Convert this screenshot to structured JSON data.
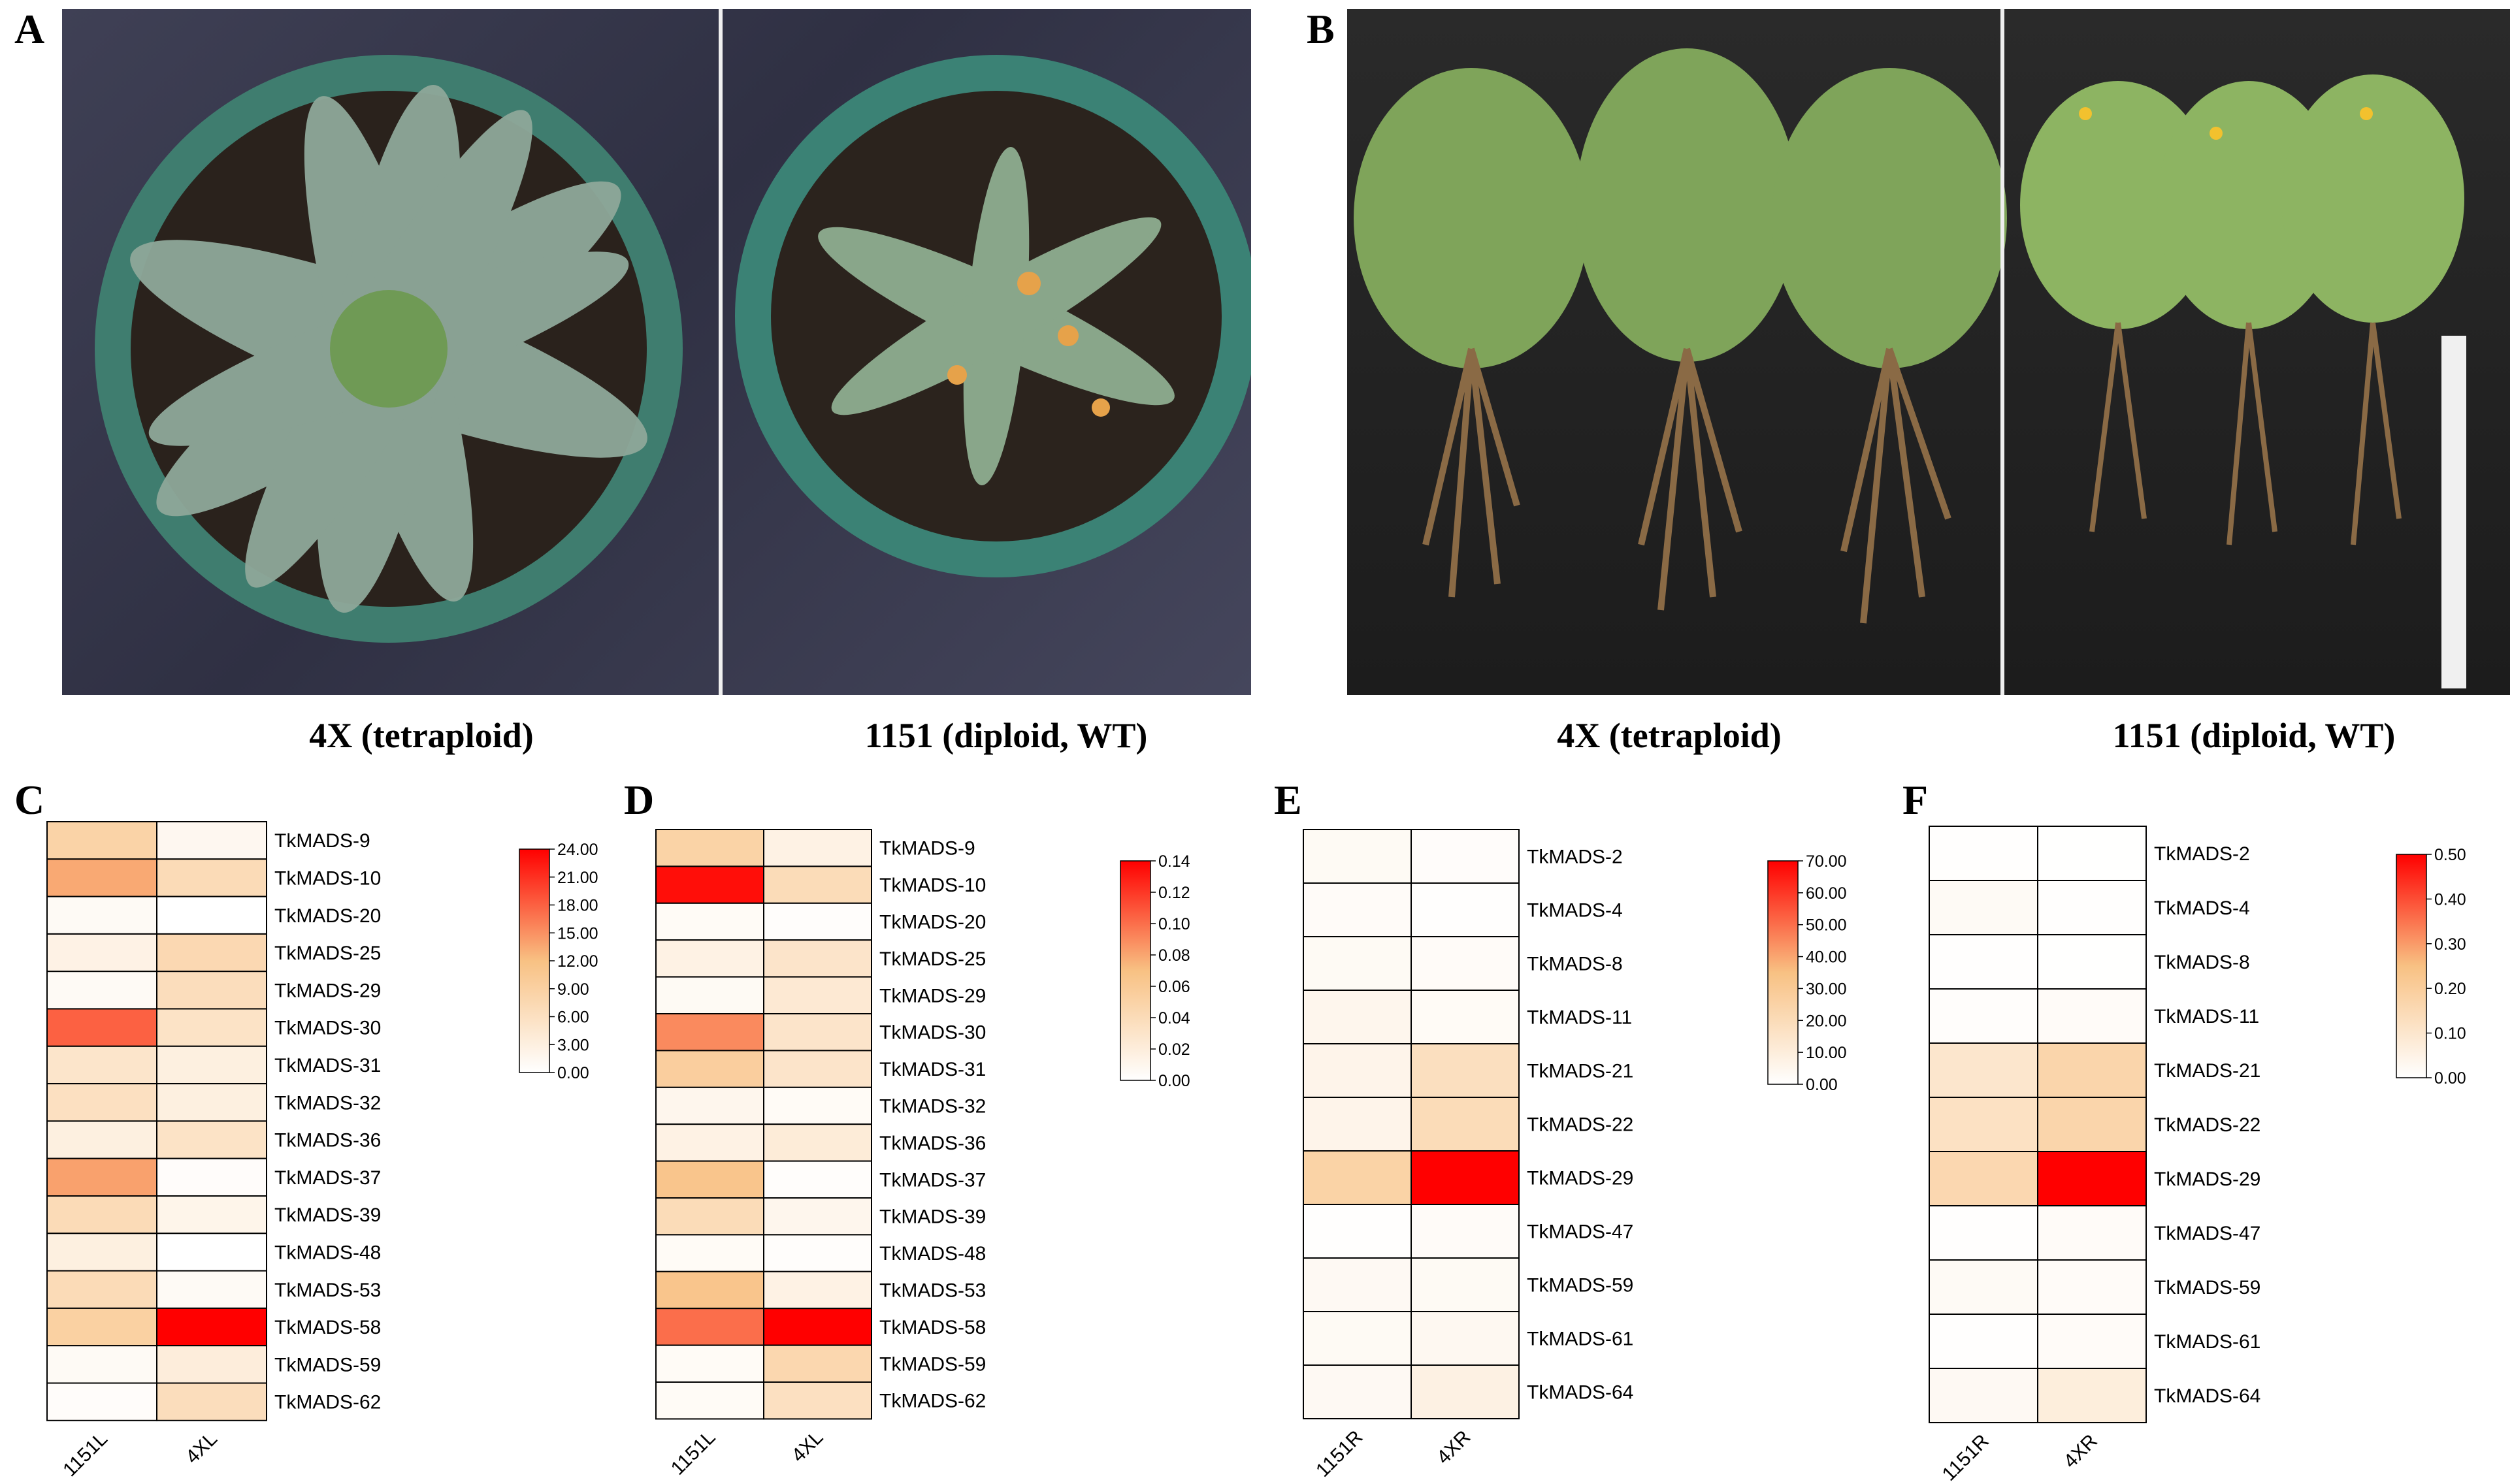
{
  "panels": {
    "A": {
      "letter": "A",
      "caption_left": "4X (tetraploid)",
      "caption_right": "1151 (diploid, WT)"
    },
    "B": {
      "letter": "B",
      "caption_left": "4X (tetraploid)",
      "caption_right": "1151 (diploid, WT)"
    },
    "C": {
      "letter": "C"
    },
    "D": {
      "letter": "D"
    },
    "E": {
      "letter": "E"
    },
    "F": {
      "letter": "F"
    }
  },
  "colors": {
    "low": "#ffffff",
    "mid": "#f8c183",
    "high": "#ff0000",
    "grid": "#000000"
  },
  "chart_data": [
    {
      "panel": "C",
      "type": "heatmap",
      "columns": [
        "1151L",
        "4XL"
      ],
      "rows": [
        "TkMADS-9",
        "TkMADS-10",
        "TkMADS-20",
        "TkMADS-25",
        "TkMADS-29",
        "TkMADS-30",
        "TkMADS-31",
        "TkMADS-32",
        "TkMADS-36",
        "TkMADS-37",
        "TkMADS-39",
        "TkMADS-48",
        "TkMADS-53",
        "TkMADS-58",
        "TkMADS-59",
        "TkMADS-62"
      ],
      "values": [
        [
          8.5,
          1.5
        ],
        [
          13.5,
          7.0
        ],
        [
          1.0,
          0.0
        ],
        [
          2.5,
          7.5
        ],
        [
          1.0,
          6.5
        ],
        [
          18.0,
          5.5
        ],
        [
          5.0,
          3.0
        ],
        [
          6.0,
          3.0
        ],
        [
          3.0,
          5.5
        ],
        [
          14.0,
          0.5
        ],
        [
          7.0,
          2.0
        ],
        [
          3.0,
          0.0
        ],
        [
          7.0,
          1.0
        ],
        [
          9.0,
          24.0
        ],
        [
          1.0,
          3.5
        ],
        [
          0.5,
          6.5
        ]
      ],
      "colorbar": {
        "min": 0,
        "max": 24,
        "ticks": [
          "0.00",
          "3.00",
          "6.00",
          "9.00",
          "12.00",
          "15.00",
          "18.00",
          "21.00",
          "24.00"
        ]
      }
    },
    {
      "panel": "D",
      "type": "heatmap",
      "columns": [
        "1151L",
        "4XL"
      ],
      "rows": [
        "TkMADS-9",
        "TkMADS-10",
        "TkMADS-20",
        "TkMADS-25",
        "TkMADS-29",
        "TkMADS-30",
        "TkMADS-31",
        "TkMADS-32",
        "TkMADS-36",
        "TkMADS-37",
        "TkMADS-39",
        "TkMADS-48",
        "TkMADS-53",
        "TkMADS-58",
        "TkMADS-59",
        "TkMADS-62"
      ],
      "values": [
        [
          0.05,
          0.015
        ],
        [
          0.135,
          0.04
        ],
        [
          0.005,
          0.002
        ],
        [
          0.015,
          0.03
        ],
        [
          0.006,
          0.025
        ],
        [
          0.09,
          0.03
        ],
        [
          0.055,
          0.03
        ],
        [
          0.01,
          0.005
        ],
        [
          0.015,
          0.022
        ],
        [
          0.065,
          0.002
        ],
        [
          0.04,
          0.01
        ],
        [
          0.005,
          0.002
        ],
        [
          0.065,
          0.015
        ],
        [
          0.1,
          0.14
        ],
        [
          0.005,
          0.045
        ],
        [
          0.005,
          0.035
        ]
      ],
      "colorbar": {
        "min": 0,
        "max": 0.14,
        "ticks": [
          "0.00",
          "0.02",
          "0.04",
          "0.06",
          "0.08",
          "0.10",
          "0.12",
          "0.14"
        ]
      }
    },
    {
      "panel": "E",
      "type": "heatmap",
      "columns": [
        "1151R",
        "4XR"
      ],
      "rows": [
        "TkMADS-2",
        "TkMADS-4",
        "TkMADS-8",
        "TkMADS-11",
        "TkMADS-21",
        "TkMADS-22",
        "TkMADS-29",
        "TkMADS-47",
        "TkMADS-59",
        "TkMADS-61",
        "TkMADS-64"
      ],
      "values": [
        [
          3.0,
          1.5
        ],
        [
          2.0,
          0.5
        ],
        [
          3.0,
          2.0
        ],
        [
          5.0,
          2.5
        ],
        [
          6.0,
          18.0
        ],
        [
          6.0,
          20.0
        ],
        [
          25.0,
          70.0
        ],
        [
          0.5,
          2.0
        ],
        [
          3.5,
          3.0
        ],
        [
          3.0,
          4.0
        ],
        [
          3.5,
          8.0
        ]
      ],
      "colorbar": {
        "min": 0,
        "max": 70,
        "ticks": [
          "0.00",
          "10.00",
          "20.00",
          "30.00",
          "40.00",
          "50.00",
          "60.00",
          "70.00"
        ]
      }
    },
    {
      "panel": "F",
      "type": "heatmap",
      "columns": [
        "1151R",
        "4XR"
      ],
      "rows": [
        "TkMADS-2",
        "TkMADS-4",
        "TkMADS-8",
        "TkMADS-11",
        "TkMADS-21",
        "TkMADS-22",
        "TkMADS-29",
        "TkMADS-47",
        "TkMADS-59",
        "TkMADS-61",
        "TkMADS-64"
      ],
      "values": [
        [
          0.005,
          0.002
        ],
        [
          0.02,
          0.005
        ],
        [
          0.005,
          0.002
        ],
        [
          0.008,
          0.015
        ],
        [
          0.1,
          0.17
        ],
        [
          0.12,
          0.17
        ],
        [
          0.16,
          0.5
        ],
        [
          0.005,
          0.015
        ],
        [
          0.02,
          0.015
        ],
        [
          0.005,
          0.015
        ],
        [
          0.025,
          0.07
        ]
      ],
      "colorbar": {
        "min": 0,
        "max": 0.5,
        "ticks": [
          "0.00",
          "0.10",
          "0.20",
          "0.30",
          "0.40",
          "0.50"
        ]
      }
    }
  ]
}
